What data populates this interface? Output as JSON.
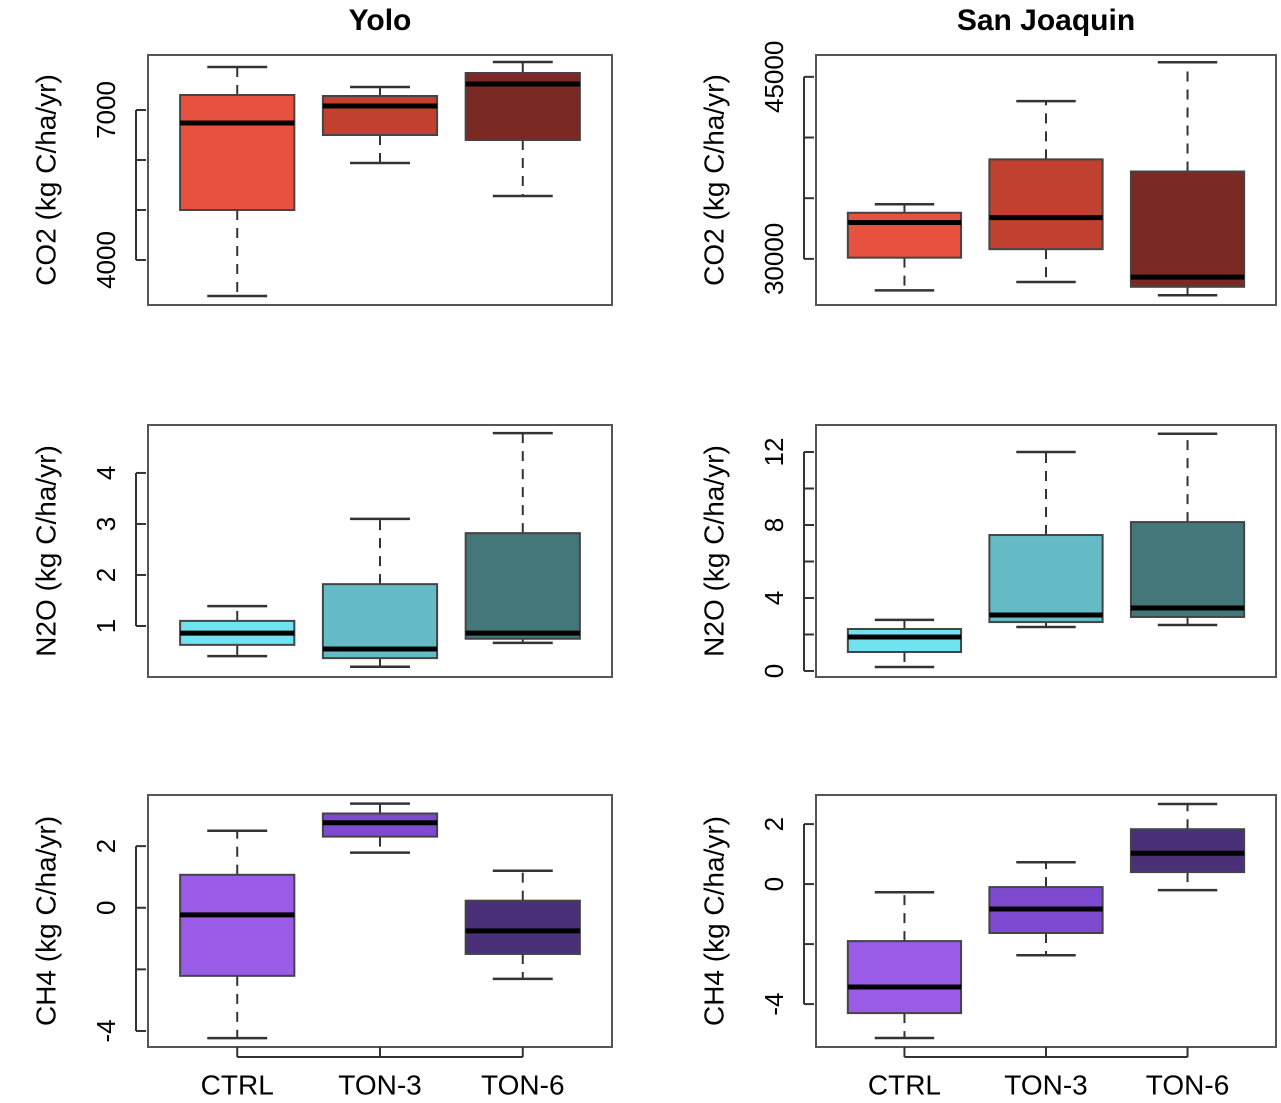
{
  "chart_data": [
    {
      "type": "box",
      "title": "Yolo",
      "y_label": "CO2 (kg C/ha/yr)",
      "ylim": [
        3100,
        8100
      ],
      "yticks": [
        4000,
        7000
      ],
      "minor_yticks": [
        5000,
        6000
      ],
      "boxes": [
        {
          "color": "#e8513f",
          "whisker_low": 3280,
          "q1": 5000,
          "median": 6740,
          "q3": 7300,
          "whisker_high": 7860
        },
        {
          "color": "#c1402f",
          "whisker_low": 5940,
          "q1": 6500,
          "median": 7080,
          "q3": 7280,
          "whisker_high": 7460
        },
        {
          "color": "#7a2a22",
          "whisker_low": 5280,
          "q1": 6400,
          "median": 7520,
          "q3": 7740,
          "whisker_high": 7960
        }
      ]
    },
    {
      "type": "box",
      "title": "San Joaquin",
      "y_label": "CO2 (kg C/ha/yr)",
      "ylim": [
        26200,
        46800
      ],
      "yticks": [
        30000,
        45000
      ],
      "minor_yticks": [
        35000,
        40000
      ],
      "boxes": [
        {
          "color": "#e8513f",
          "whisker_low": 27400,
          "q1": 30100,
          "median": 33000,
          "q3": 33800,
          "whisker_high": 34500
        },
        {
          "color": "#c1402f",
          "whisker_low": 28100,
          "q1": 30800,
          "median": 33400,
          "q3": 38200,
          "whisker_high": 43000
        },
        {
          "color": "#7a2a22",
          "whisker_low": 27000,
          "q1": 27700,
          "median": 28500,
          "q3": 37200,
          "whisker_high": 46200
        }
      ]
    },
    {
      "type": "box",
      "y_label": "N2O (kg C/ha/yr)",
      "ylim": [
        0,
        4.94
      ],
      "yticks": [
        1,
        2,
        3,
        4
      ],
      "boxes": [
        {
          "color": "#6fe3f0",
          "whisker_low": 0.41,
          "q1": 0.63,
          "median": 0.86,
          "q3": 1.1,
          "whisker_high": 1.39
        },
        {
          "color": "#66bcc6",
          "whisker_low": 0.2,
          "q1": 0.37,
          "median": 0.55,
          "q3": 1.82,
          "whisker_high": 3.1
        },
        {
          "color": "#44777a",
          "whisker_low": 0.67,
          "q1": 0.75,
          "median": 0.86,
          "q3": 2.82,
          "whisker_high": 4.78
        }
      ]
    },
    {
      "type": "box",
      "y_label": "N2O (kg C/ha/yr)",
      "ylim": [
        -0.33,
        13.48
      ],
      "yticks": [
        0,
        4,
        8,
        12
      ],
      "minor_yticks": [
        2,
        6,
        10
      ],
      "boxes": [
        {
          "color": "#6fe3f0",
          "whisker_low": 0.22,
          "q1": 1.04,
          "median": 1.86,
          "q3": 2.3,
          "whisker_high": 2.8
        },
        {
          "color": "#66bcc6",
          "whisker_low": 2.41,
          "q1": 2.68,
          "median": 3.07,
          "q3": 7.45,
          "whisker_high": 12
        },
        {
          "color": "#44777a",
          "whisker_low": 2.52,
          "q1": 2.96,
          "median": 3.45,
          "q3": 8.16,
          "whisker_high": 13
        }
      ]
    },
    {
      "type": "box",
      "y_label": "CH4 (kg C/ha/yr)",
      "ylim": [
        -4.52,
        3.66
      ],
      "yticks": [
        -4,
        0,
        2
      ],
      "minor_yticks": [
        -2
      ],
      "categories": [
        "CTRL",
        "TON-3",
        "TON-6"
      ],
      "boxes": [
        {
          "color": "#9a5ce6",
          "whisker_low": -4.23,
          "q1": -2.21,
          "median": -0.23,
          "q3": 1.07,
          "whisker_high": 2.5
        },
        {
          "color": "#7e4ad0",
          "whisker_low": 1.79,
          "q1": 2.31,
          "median": 2.76,
          "q3": 3.06,
          "whisker_high": 3.38
        },
        {
          "color": "#4a3078",
          "whisker_low": -2.31,
          "q1": -1.5,
          "median": -0.75,
          "q3": 0.23,
          "whisker_high": 1.2
        }
      ]
    },
    {
      "type": "box",
      "y_label": "CH4 (kg C/ha/yr)",
      "ylim": [
        -5.43,
        2.97
      ],
      "yticks": [
        -4,
        0,
        2
      ],
      "minor_yticks": [
        -2
      ],
      "categories": [
        "CTRL",
        "TON-3",
        "TON-6"
      ],
      "boxes": [
        {
          "color": "#9a5ce6",
          "whisker_low": -5.13,
          "q1": -4.3,
          "median": -3.43,
          "q3": -1.9,
          "whisker_high": -0.27
        },
        {
          "color": "#7e4ad0",
          "whisker_low": -2.37,
          "q1": -1.63,
          "median": -0.83,
          "q3": -0.1,
          "whisker_high": 0.73
        },
        {
          "color": "#4a3078",
          "whisker_low": -0.2,
          "q1": 0.4,
          "median": 1.03,
          "q3": 1.83,
          "whisker_high": 2.67
        }
      ]
    }
  ]
}
